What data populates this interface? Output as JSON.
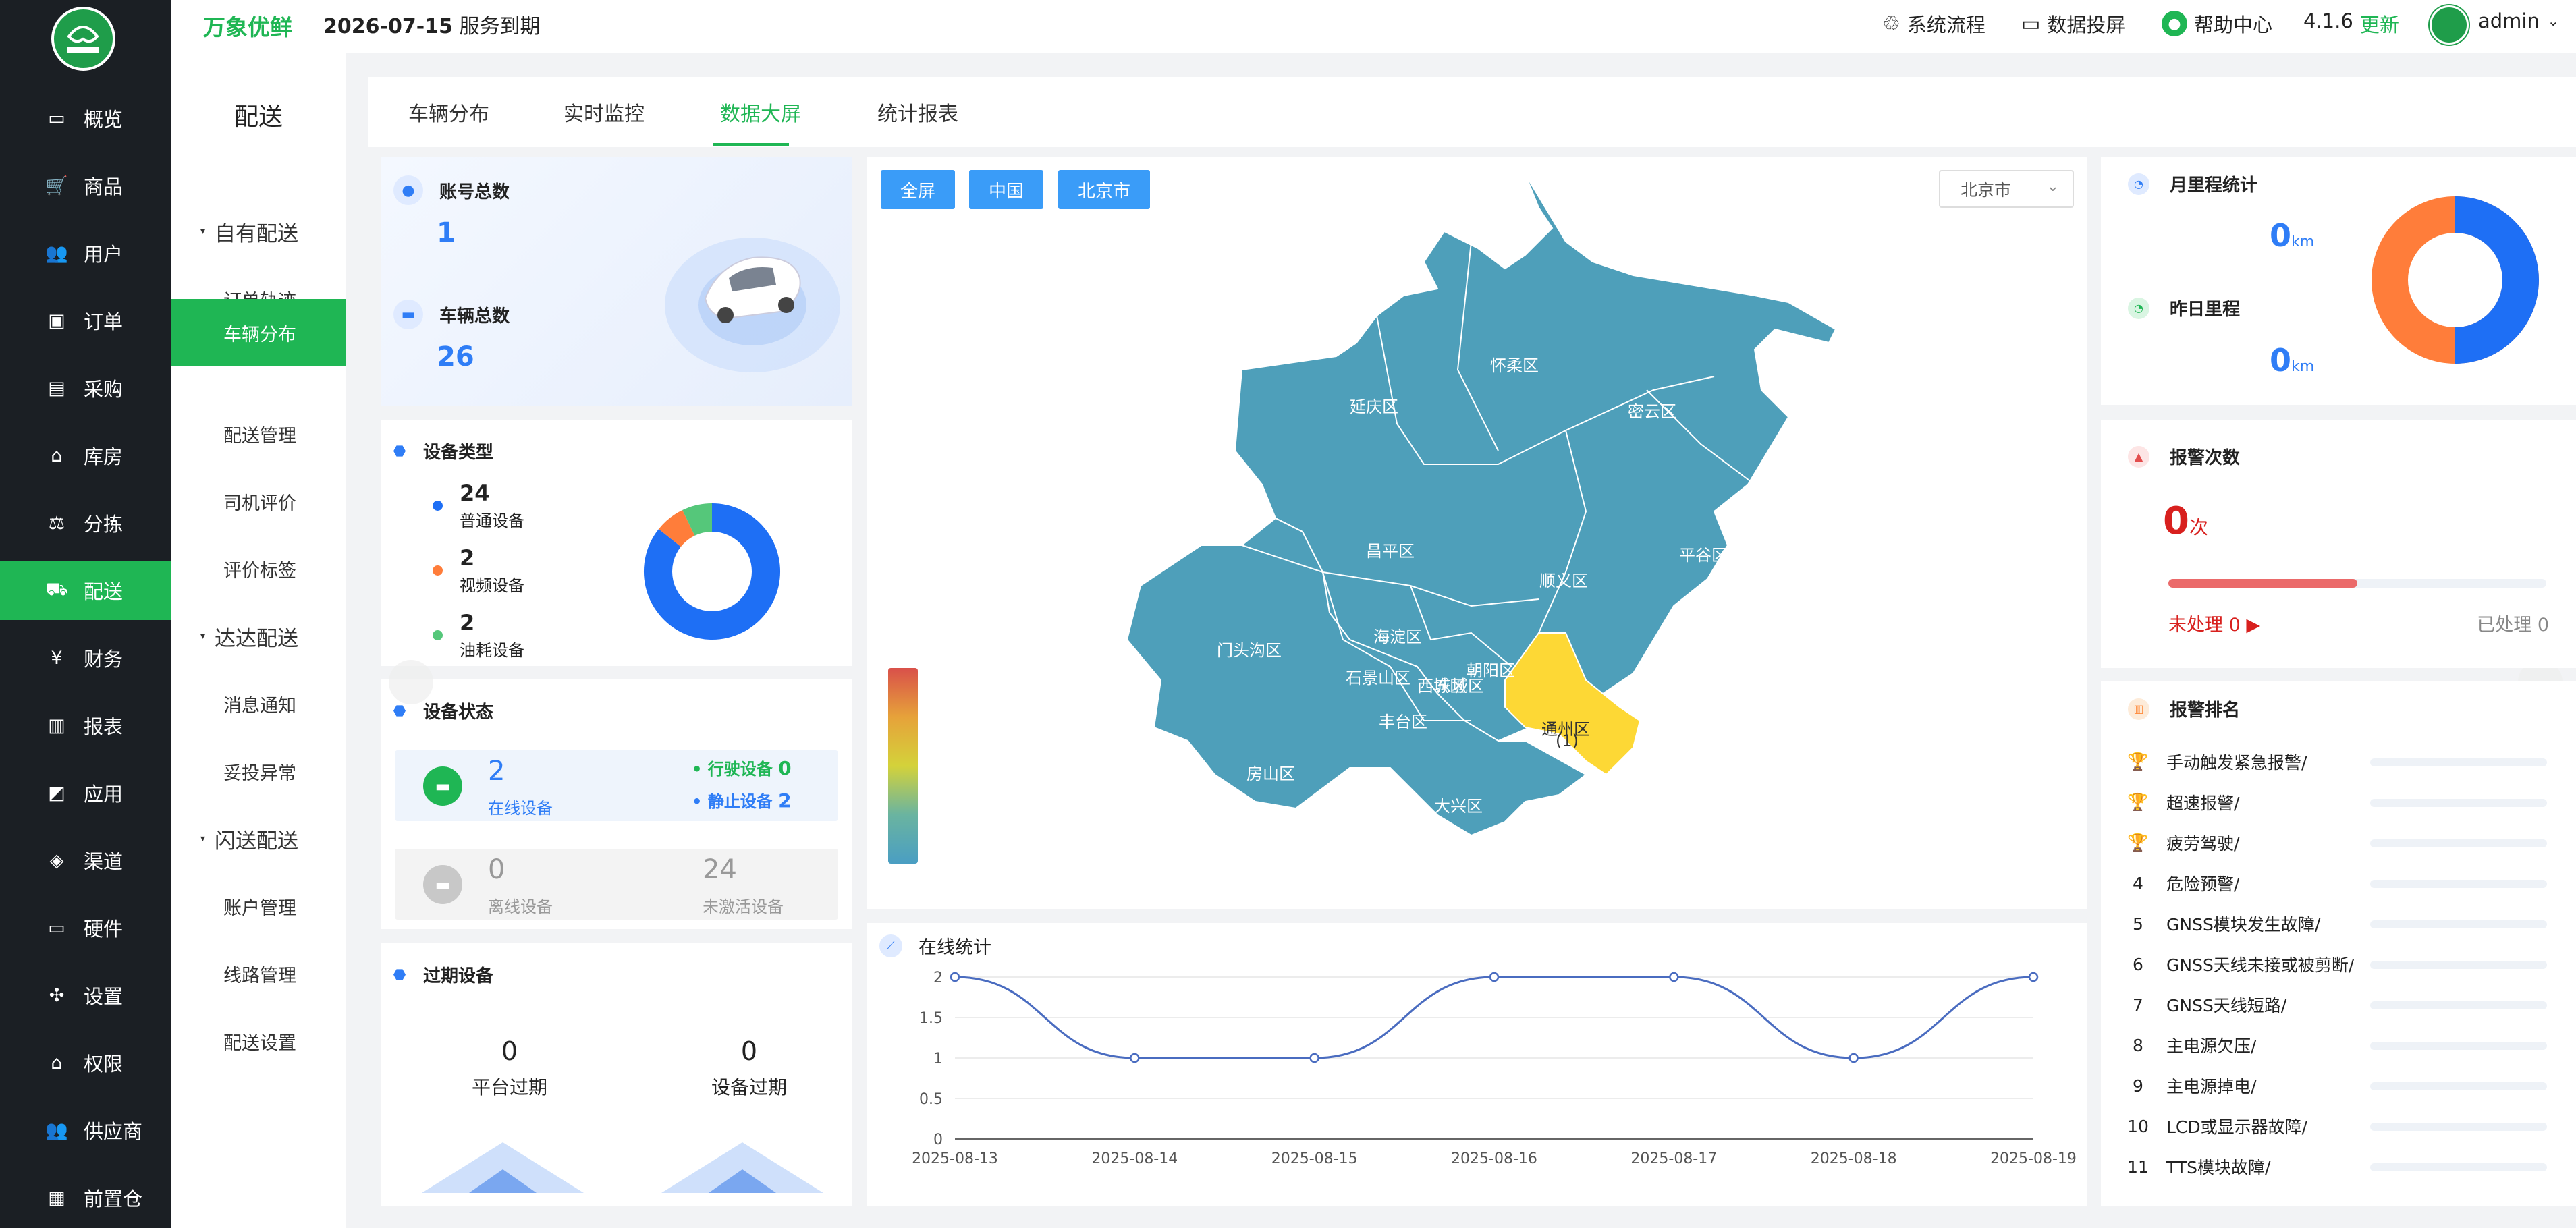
{
  "app": {
    "brand": "万象优鲜",
    "expire_date": "2026-07-15",
    "expire_text": "服务到期"
  },
  "topbar": {
    "items": [
      {
        "label": "系统流程",
        "icon": "flow-icon"
      },
      {
        "label": "数据投屏",
        "icon": "screen-icon"
      },
      {
        "label": "帮助中心",
        "icon": "help-icon"
      }
    ],
    "version": "4.1.6",
    "update": "更新",
    "user": "admin"
  },
  "nav": [
    {
      "label": "概览",
      "icon": "monitor-icon"
    },
    {
      "label": "商品",
      "icon": "cart-icon"
    },
    {
      "label": "用户",
      "icon": "users-icon"
    },
    {
      "label": "订单",
      "icon": "cash-icon"
    },
    {
      "label": "采购",
      "icon": "bus-icon"
    },
    {
      "label": "库房",
      "icon": "home-icon"
    },
    {
      "label": "分拣",
      "icon": "scale-icon"
    },
    {
      "label": "配送",
      "icon": "truck-icon"
    },
    {
      "label": "财务",
      "icon": "yen-icon"
    },
    {
      "label": "报表",
      "icon": "bar-chart-icon"
    },
    {
      "label": "应用",
      "icon": "apps-icon"
    },
    {
      "label": "渠道",
      "icon": "cube-icon"
    },
    {
      "label": "硬件",
      "icon": "desktop-icon"
    },
    {
      "label": "设置",
      "icon": "puzzle-icon"
    },
    {
      "label": "权限",
      "icon": "bank-icon"
    },
    {
      "label": "供应商",
      "icon": "users-icon"
    },
    {
      "label": "前置仓",
      "icon": "warehouse-icon"
    }
  ],
  "subnav": {
    "title": "配送",
    "items": [
      {
        "label": "自有配送",
        "group": true
      },
      {
        "label": "订单轨迹"
      },
      {
        "label": "车辆分布"
      },
      {
        "label": "配送管理"
      },
      {
        "label": "司机评价"
      },
      {
        "label": "评价标签"
      },
      {
        "label": "达达配送",
        "group": true
      },
      {
        "label": "消息通知"
      },
      {
        "label": "妥投异常"
      },
      {
        "label": "闪送配送",
        "group": true
      },
      {
        "label": "账户管理"
      },
      {
        "label": "线路管理"
      },
      {
        "label": "配送设置"
      }
    ]
  },
  "tabs": [
    "车辆分布",
    "实时监控",
    "数据大屏",
    "统计报表"
  ],
  "accounts": {
    "account_label": "账号总数",
    "account_value": "1",
    "vehicle_label": "车辆总数",
    "vehicle_value": "26"
  },
  "device_type": {
    "title": "设备类型",
    "items": [
      {
        "value": "24",
        "label": "普通设备",
        "color": "#1e6ff5"
      },
      {
        "value": "2",
        "label": "视频设备",
        "color": "#ff7d3a"
      },
      {
        "value": "2",
        "label": "油耗设备",
        "color": "#55c77a"
      }
    ]
  },
  "device_status": {
    "title": "设备状态",
    "online_value": "2",
    "online_label": "在线设备",
    "driving_label": "行驶设备",
    "driving_value": "0",
    "static_label": "静止设备",
    "static_value": "2",
    "offline_value": "0",
    "offline_label": "离线设备",
    "inactive_value": "24",
    "inactive_label": "未激活设备"
  },
  "expired": {
    "title": "过期设备",
    "platform_value": "0",
    "platform_label": "平台过期",
    "device_value": "0",
    "device_label": "设备过期"
  },
  "map": {
    "buttons": [
      "全屏",
      "中国",
      "北京市"
    ],
    "select": "北京市",
    "districts": [
      "延庆区",
      "怀柔区",
      "密云区",
      "昌平区",
      "平谷区",
      "顺义区",
      "门头沟区",
      "海淀区",
      "朝阳区",
      "石景山区",
      "西城区",
      "东城区",
      "丰台区",
      "通州区",
      "(1)",
      "房山区",
      "大兴区"
    ],
    "colors": {
      "base": "#4e9fba",
      "highlight": "#fdd835"
    }
  },
  "online_stats": {
    "title": "在线统计"
  },
  "chart_data": {
    "type": "line",
    "title": "",
    "x": [
      "2025-08-13",
      "2025-08-14",
      "2025-08-15",
      "2025-08-16",
      "2025-08-17",
      "2025-08-18",
      "2025-08-19"
    ],
    "series": [
      {
        "values": [
          2,
          1,
          1,
          2,
          2,
          1,
          2
        ]
      }
    ],
    "ylim": [
      0,
      2
    ],
    "yticks": [
      "0",
      "0.5",
      "1",
      "1.5",
      "2"
    ],
    "grid": true,
    "color": "#4a6cc0"
  },
  "mileage": {
    "month_label": "月里程统计",
    "month_value": "0",
    "month_unit": "km",
    "yesterday_label": "昨日里程",
    "yesterday_value": "0",
    "yesterday_unit": "km"
  },
  "alarm": {
    "title": "报警次数",
    "value": "0",
    "unit": "次",
    "processed_ratio": 0.5,
    "unprocessed_label": "未处理 0",
    "processed_label": "已处理 0"
  },
  "ranking": {
    "title": "报警排名",
    "items": [
      "手动触发紧急报警/",
      "超速报警/",
      "疲劳驾驶/",
      "危险预警/",
      "GNSS模块发生故障/",
      "GNSS天线未接或被剪断/",
      "GNSS天线短路/",
      "主电源欠压/",
      "主电源掉电/",
      "LCD或显示器故障/",
      "TTS模块故障/"
    ],
    "nos": [
      "4",
      "5",
      "6",
      "7",
      "8",
      "9",
      "10",
      "11"
    ]
  }
}
